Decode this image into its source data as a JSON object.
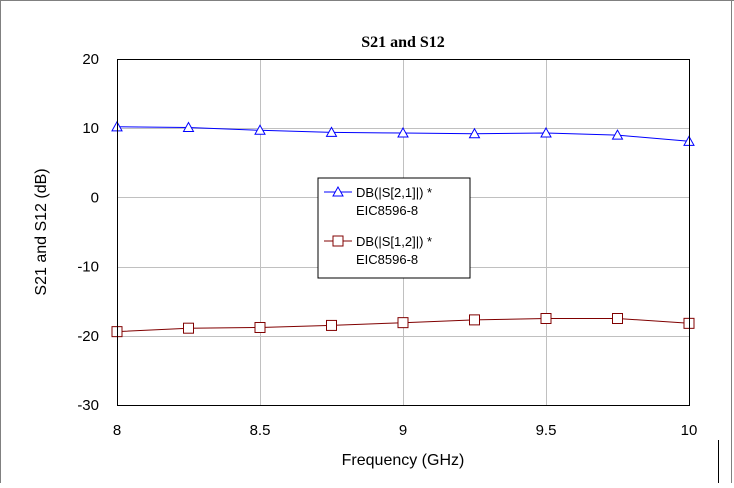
{
  "chart_data": {
    "type": "line",
    "title": "S21 and S12",
    "xlabel": "Frequency (GHz)",
    "ylabel": "S21 and S12 (dB)",
    "xlim": [
      8,
      10
    ],
    "ylim": [
      -30,
      20
    ],
    "x_ticks": [
      "8",
      "8.5",
      "9",
      "9.5",
      "10"
    ],
    "y_ticks": [
      "20",
      "10",
      "0",
      "-10",
      "-20",
      "-30"
    ],
    "grid": true,
    "legend_position": "center",
    "series": [
      {
        "name": "DB(|S[2,1]|) *",
        "name_line2": "EIC8596-8",
        "color": "#0000ff",
        "marker": "triangle",
        "x": [
          8,
          8.25,
          8.5,
          8.75,
          9,
          9.25,
          9.5,
          9.75,
          10
        ],
        "y": [
          10.2,
          10.1,
          9.7,
          9.4,
          9.3,
          9.2,
          9.3,
          9.0,
          8.1
        ]
      },
      {
        "name": "DB(|S[1,2]|) *",
        "name_line2": "EIC8596-8",
        "color": "#800000",
        "marker": "square",
        "x": [
          8,
          8.25,
          8.5,
          8.75,
          9,
          9.25,
          9.5,
          9.75,
          10
        ],
        "y": [
          -19.4,
          -18.9,
          -18.8,
          -18.5,
          -18.1,
          -17.7,
          -17.5,
          -17.5,
          -18.2
        ]
      }
    ]
  }
}
